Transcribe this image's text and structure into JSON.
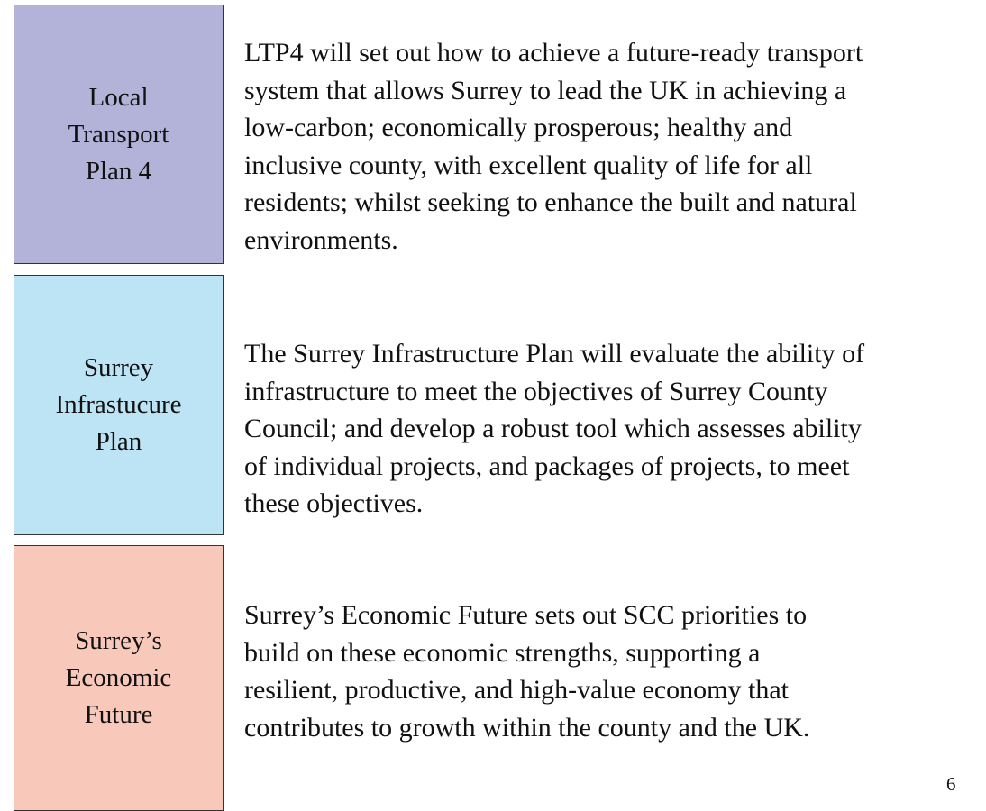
{
  "rows": [
    {
      "label": [
        "Local",
        "Transport",
        "Plan 4"
      ],
      "text": [
        "LTP4 will set out how to achieve a future-ready transport",
        "system that allows Surrey to lead the UK in achieving a",
        "low-carbon; economically prosperous; healthy and",
        "inclusive county, with excellent quality of life for all",
        "residents; whilst seeking to enhance the built and natural",
        "environments."
      ]
    },
    {
      "label": [
        "Surrey",
        "Infrastucure",
        "Plan"
      ],
      "text": [
        "The Surrey Infrastructure Plan will evaluate the ability of",
        "infrastructure to meet the objectives of Surrey County",
        "Council; and develop a robust tool which assesses ability",
        "of individual projects, and packages of projects, to meet",
        "these objectives."
      ]
    },
    {
      "label": [
        "Surrey’s",
        "Economic",
        "Future"
      ],
      "text": [
        "Surrey’s Economic Future sets out SCC priorities to",
        "build on these economic strengths, supporting a",
        "resilient, productive, and high-value economy that",
        "contributes to growth within the county and the UK."
      ]
    }
  ],
  "page_number": "6"
}
